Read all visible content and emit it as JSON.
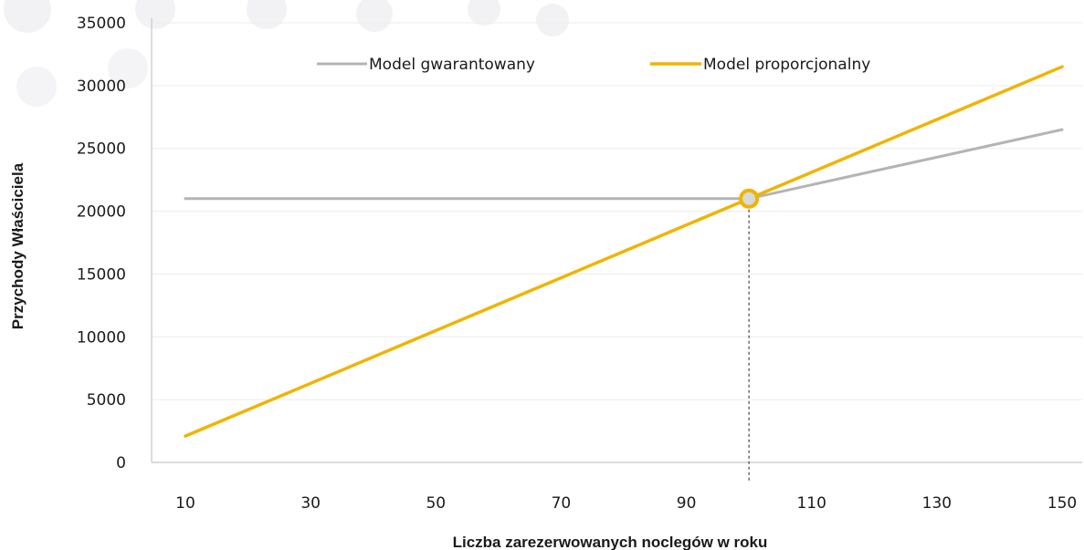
{
  "chart_data": {
    "type": "line",
    "title": "",
    "xlabel": "Liczba  zarezerwowanych noclegów w roku",
    "ylabel": "Przychody Właściciela",
    "xlim": [
      10,
      150
    ],
    "ylim": [
      0,
      35000
    ],
    "x_ticks": [
      "10",
      "30",
      "50",
      "70",
      "90",
      "110",
      "130",
      "150"
    ],
    "y_ticks": [
      "0",
      "5000",
      "10000",
      "15000",
      "20000",
      "25000",
      "30000",
      "35000"
    ],
    "x_tick_values": [
      10,
      30,
      50,
      70,
      90,
      110,
      130,
      150
    ],
    "y_tick_values": [
      0,
      5000,
      10000,
      15000,
      20000,
      25000,
      30000,
      35000
    ],
    "grid": "horizontal",
    "legend_position": "top",
    "series": [
      {
        "name": "Model gwarantowany",
        "color": "#b4b4b4",
        "points": [
          [
            10,
            21000
          ],
          [
            100,
            21000
          ],
          [
            150,
            26500
          ]
        ]
      },
      {
        "name": "Model proporcjonalny",
        "color": "#f0b400",
        "points": [
          [
            10,
            2100
          ],
          [
            150,
            31500
          ]
        ]
      }
    ],
    "annotations": [
      {
        "type": "break-even-marker",
        "x": 100,
        "y": 21000,
        "color": "#f0b400",
        "drop_line": "dotted"
      }
    ]
  }
}
